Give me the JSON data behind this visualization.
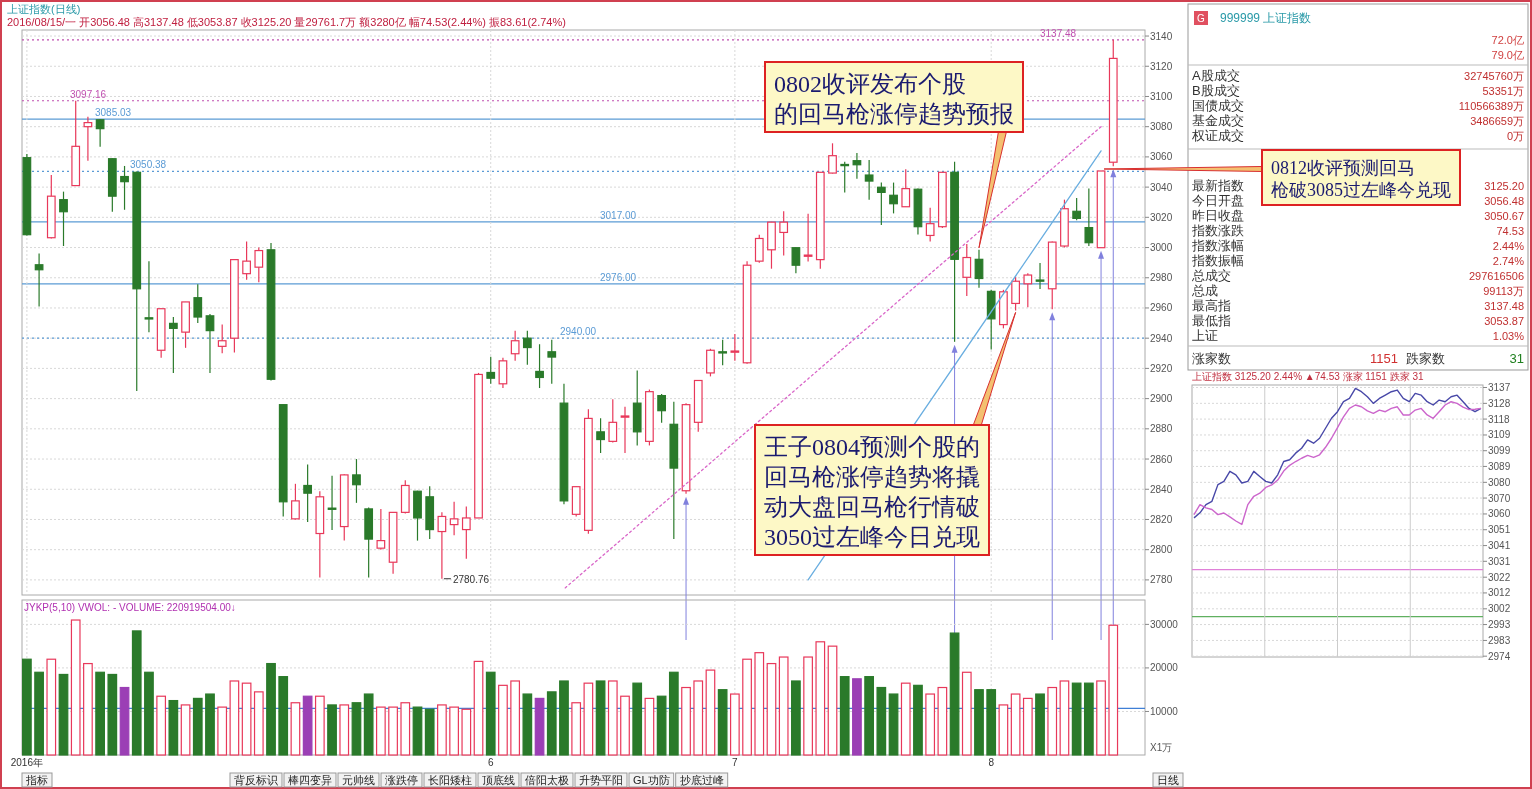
{
  "chart_data": [
    {
      "type": "candlestick",
      "title": "上证指数(日线)",
      "subtitle": "2016/08/15/一 开3056.48 高3137.48 低3053.87 收3125.20 量29761.7万 额3280亿 幅74.53(2.44%) 振83.61(2.74%)",
      "categories": [
        null,
        null,
        null,
        null,
        null,
        null,
        null,
        null,
        null,
        null,
        null,
        null,
        null,
        null,
        null,
        null,
        null,
        null,
        null,
        null,
        null,
        null,
        null,
        null,
        null,
        null,
        null,
        null,
        null,
        null,
        null,
        null,
        null,
        null,
        null,
        null,
        null,
        null,
        null,
        null,
        null,
        null,
        null,
        null,
        null,
        null,
        null,
        null,
        null,
        null,
        null,
        null,
        null,
        null,
        null,
        null,
        null,
        null,
        null,
        null,
        null,
        null,
        null,
        null,
        null,
        null,
        null,
        null,
        null,
        null,
        null,
        null,
        null,
        null,
        null,
        null,
        null,
        null,
        null,
        null,
        null,
        null,
        null,
        null,
        null,
        null,
        null,
        null,
        null,
        null
      ],
      "tick_labels": "y",
      "ylim": [
        2770,
        3144
      ],
      "yticks": [
        2780,
        2800,
        2820,
        2840,
        2860,
        2880,
        2900,
        2920,
        2940,
        2960,
        2980,
        3000,
        3020,
        3040,
        3060,
        3080,
        3100,
        3120,
        3140
      ],
      "grid": true,
      "ohlc": [
        [
          3059.5,
          3062,
          3008,
          3008.5
        ],
        [
          2988.6,
          2996,
          2961,
          2985.3
        ],
        [
          3006.5,
          3048,
          3006,
          3034
        ],
        [
          3031.7,
          3037,
          3001,
          3023.7
        ],
        [
          3041,
          3097.16,
          3041,
          3067
        ],
        [
          3080,
          3086.6,
          3057.5,
          3082.7
        ],
        [
          3084.6,
          3085.03,
          3066.8,
          3078.7
        ],
        [
          3058.8,
          3059,
          3023.7,
          3034
        ],
        [
          3047,
          3054,
          3025,
          3043.6
        ],
        [
          3049.8,
          3050.38,
          2905,
          2972.7
        ],
        [
          2953.5,
          2991,
          2944,
          2953
        ],
        [
          2932,
          2959.5,
          2927,
          2959.5
        ],
        [
          2949.8,
          2954,
          2917,
          2946.5
        ],
        [
          2944,
          2964,
          2933.6,
          2964
        ],
        [
          2966.8,
          2975.7,
          2950,
          2954
        ],
        [
          2954.8,
          2956,
          2917,
          2945
        ],
        [
          2934.6,
          2949,
          2930,
          2938.3
        ],
        [
          2940,
          2992,
          2930.5,
          2992
        ],
        [
          2982.7,
          3004,
          2978.7,
          2991
        ],
        [
          2987,
          3000,
          2977,
          2998
        ],
        [
          2998.5,
          3003,
          2912,
          2912.8
        ],
        [
          2896,
          2896,
          2822,
          2831.7
        ],
        [
          2820.4,
          2843.6,
          2820,
          2832.3
        ],
        [
          2842.5,
          2856.4,
          2818.4,
          2837.4
        ],
        [
          2810.7,
          2838.7,
          2781.6,
          2835
        ],
        [
          2827.5,
          2849,
          2813,
          2827
        ],
        [
          2815.3,
          2850,
          2806,
          2849.5
        ],
        [
          2849.5,
          2860,
          2831,
          2843
        ],
        [
          2827,
          2828,
          2781.6,
          2807
        ],
        [
          2801,
          2827,
          2800,
          2806
        ],
        [
          2791.7,
          2825,
          2784,
          2824.7
        ],
        [
          2824.7,
          2846,
          2824,
          2842.5
        ],
        [
          2838.7,
          2839,
          2806,
          2821
        ],
        [
          2835,
          2842,
          2807,
          2813.3
        ],
        [
          2812,
          2824.7,
          2780.76,
          2822
        ],
        [
          2816.6,
          2831.7,
          2809.5,
          2820.4
        ],
        [
          2813.3,
          2828.5,
          2794,
          2821
        ],
        [
          2821,
          2917,
          2821,
          2916
        ],
        [
          2917.3,
          2927.7,
          2909.8,
          2913.5
        ],
        [
          2909.8,
          2927,
          2907,
          2925
        ],
        [
          2929.7,
          2945,
          2925,
          2938.3
        ],
        [
          2940,
          2945,
          2922.4,
          2933.8
        ],
        [
          2918,
          2936,
          2907,
          2914
        ],
        [
          2931,
          2939,
          2909.8,
          2927.5
        ],
        [
          2897,
          2909.8,
          2830,
          2832.3
        ],
        [
          2823.4,
          2842,
          2822,
          2841.7
        ],
        [
          2812.8,
          2893,
          2810.6,
          2886.9
        ],
        [
          2878,
          2887,
          2864,
          2872.9
        ],
        [
          2871.7,
          2899.5,
          2871,
          2884.3
        ],
        [
          2888,
          2894.6,
          2864,
          2888.5
        ],
        [
          2897,
          2918.6,
          2869,
          2878
        ],
        [
          2871.7,
          2906,
          2869,
          2904.6
        ],
        [
          2902,
          2903,
          2884,
          2892
        ],
        [
          2883,
          2898,
          2807,
          2854
        ],
        [
          2839,
          2897,
          2837,
          2896
        ],
        [
          2884.3,
          2912,
          2878,
          2912
        ],
        [
          2917,
          2933,
          2914.7,
          2932
        ],
        [
          2931,
          2939,
          2922,
          2930.5
        ],
        [
          2931,
          2942.7,
          2925,
          2931.5
        ],
        [
          2923.7,
          2991,
          2923,
          2988.3
        ],
        [
          2991,
          3008.5,
          2990,
          3006
        ],
        [
          2998.5,
          3017,
          2986,
          3016.8
        ],
        [
          3010,
          3024,
          2994.7,
          3016.8
        ],
        [
          2999.9,
          3000,
          2983,
          2988.3
        ],
        [
          2994.5,
          3022.4,
          2990.8,
          2995
        ],
        [
          2992,
          3050,
          2986,
          3049.8
        ],
        [
          3049.3,
          3069,
          3049,
          3060.8
        ],
        [
          3055,
          3056.8,
          3036.5,
          3054.5
        ],
        [
          3057.5,
          3062.5,
          3045.6,
          3054.8
        ],
        [
          3048,
          3058,
          3031.7,
          3044
        ],
        [
          3039.9,
          3043,
          3015,
          3036.5
        ],
        [
          3034.6,
          3043,
          3022.6,
          3029
        ],
        [
          3027,
          3051.8,
          3027,
          3039
        ],
        [
          3038.6,
          3039,
          3008.7,
          3013.8
        ],
        [
          3008,
          3026.4,
          3004,
          3015.8
        ],
        [
          3013.8,
          3050,
          3013,
          3049.8
        ],
        [
          3049.8,
          3056.8,
          2937.6,
          2992.2
        ],
        [
          2980.3,
          3002.3,
          2968,
          2993.4
        ],
        [
          2992.2,
          2998.5,
          2973.4,
          2979.5
        ],
        [
          2971,
          2972,
          2932.5,
          2952.8
        ],
        [
          2949,
          2972,
          2946.5,
          2970.7
        ],
        [
          2963,
          2980.7,
          2958.4,
          2977.7
        ],
        [
          2976,
          2983,
          2960.5,
          2981.8
        ],
        [
          2978.5,
          2989.7,
          2972.6,
          2978
        ],
        [
          2972.7,
          3004,
          2959.2,
          3003.6
        ],
        [
          3001,
          3031.7,
          3000,
          3025.7
        ],
        [
          3024,
          3032.8,
          3018,
          3019.3
        ],
        [
          3013.2,
          3039,
          3001,
          3003.2
        ],
        [
          2999.9,
          3050.67,
          2999.9,
          3050.67
        ],
        [
          3056.48,
          3137.48,
          3053.87,
          3125.2
        ]
      ],
      "series": [
        {
          "type": "line",
          "values": [
            null,
            null,
            null,
            null,
            null,
            null,
            null,
            null,
            null,
            null,
            null,
            null,
            null,
            null,
            null,
            null,
            null,
            null,
            null,
            null,
            null,
            null,
            null,
            null,
            null,
            null,
            null,
            null,
            null,
            null,
            null,
            null,
            null,
            null,
            null,
            null,
            null,
            null,
            null,
            null,
            null,
            null,
            null,
            null,
            2774,
            null,
            null,
            null,
            null,
            null,
            null,
            null,
            null,
            null,
            null,
            null,
            null,
            null,
            null,
            null,
            null,
            null,
            null,
            null,
            null,
            null,
            null,
            null,
            null,
            null,
            null,
            null,
            null,
            null,
            null,
            null,
            null,
            null,
            null,
            null,
            null,
            null,
            null,
            null,
            null,
            null,
            null,
            null,
            3080,
            null
          ],
          "color": "#d966c8",
          "line_style": "dotted"
        },
        {
          "type": "line",
          "values": [
            null,
            null,
            null,
            null,
            null,
            null,
            null,
            null,
            null,
            null,
            null,
            null,
            null,
            null,
            null,
            null,
            null,
            null,
            null,
            null,
            null,
            null,
            null,
            null,
            null,
            null,
            null,
            null,
            null,
            null,
            null,
            null,
            null,
            null,
            null,
            null,
            null,
            null,
            null,
            null,
            null,
            null,
            null,
            null,
            null,
            null,
            null,
            null,
            null,
            null,
            null,
            null,
            null,
            null,
            null,
            null,
            null,
            null,
            null,
            null,
            null,
            null,
            null,
            null,
            2780,
            null,
            null,
            null,
            null,
            null,
            null,
            null,
            null,
            null,
            null,
            null,
            null,
            null,
            null,
            null,
            null,
            null,
            null,
            null,
            null,
            null,
            null,
            null,
            3064,
            null
          ],
          "color": "#6aaee0",
          "line_style": "solid"
        }
      ],
      "ref_lines": [
        {
          "axis": "y",
          "value": 3137.48,
          "label": "3137.48",
          "color": "#c050b0",
          "line_style": "dotted"
        },
        {
          "axis": "y",
          "value": 3097.16,
          "label": "3097.16",
          "color": "#c050b0",
          "line_style": "dotted"
        },
        {
          "axis": "y",
          "value": 3085.03,
          "label": "3085.03",
          "color": "#5b9bd5",
          "line_style": "solid"
        },
        {
          "axis": "y",
          "value": 3050.38,
          "label": "3050.38",
          "color": "#5b9bd5",
          "line_style": "dotted"
        },
        {
          "axis": "y",
          "value": 3017,
          "label": "3017.00",
          "color": "#5b9bd5",
          "line_style": "solid"
        },
        {
          "axis": "y",
          "value": 2976,
          "label": "2976.00",
          "color": "#5b9bd5",
          "line_style": "solid"
        },
        {
          "axis": "y",
          "value": 2940,
          "label": "2940.00",
          "color": "#5b9bd5",
          "line_style": "dotted"
        }
      ],
      "annotations": [
        "0802收评发布个股的回马枪涨停趋势预报",
        "王子0804预测个股的回马枪涨停趋势将撬动大盘回马枪行情破3050过左峰今日兑现",
        "0812收评预测回马枪破3085过左峰今兑现",
        "2780.76"
      ]
    },
    {
      "type": "bar",
      "title": "JYKP(5,10) VWOL: - VOLUME: 220919504.00↓",
      "ylabel": "X1万",
      "categories": [
        "2016年",
        null,
        null,
        null,
        null,
        null,
        null,
        null,
        null,
        null,
        null,
        null,
        null,
        null,
        null,
        null,
        null,
        null,
        null,
        null,
        null,
        null,
        null,
        null,
        null,
        null,
        null,
        null,
        null,
        null,
        null,
        null,
        null,
        null,
        null,
        null,
        null,
        null,
        "6",
        null,
        null,
        null,
        null,
        null,
        null,
        null,
        null,
        null,
        null,
        null,
        null,
        null,
        null,
        null,
        null,
        null,
        null,
        null,
        "7",
        null,
        null,
        null,
        null,
        null,
        null,
        null,
        null,
        null,
        null,
        null,
        null,
        null,
        null,
        null,
        null,
        null,
        null,
        null,
        null,
        "8",
        null,
        null,
        null,
        null,
        null,
        null,
        null,
        null,
        null,
        null
      ],
      "values": [
        22000,
        19000,
        22000,
        18500,
        31000,
        21000,
        19000,
        18500,
        15500,
        28500,
        19000,
        13500,
        12500,
        11500,
        13000,
        14000,
        11000,
        17000,
        16500,
        14500,
        21000,
        18000,
        12000,
        13500,
        13500,
        11500,
        11500,
        12000,
        14000,
        11000,
        11000,
        12000,
        11000,
        10500,
        11500,
        11000,
        10500,
        21500,
        19000,
        16000,
        17000,
        14000,
        13000,
        14500,
        17000,
        12000,
        16500,
        17000,
        17000,
        13500,
        16500,
        13000,
        13500,
        19000,
        15500,
        17000,
        19500,
        15000,
        14000,
        22000,
        23500,
        21000,
        22500,
        17000,
        22500,
        26000,
        25000,
        18000,
        17500,
        18000,
        15500,
        14000,
        16500,
        16000,
        14000,
        15500,
        28000,
        19000,
        15000,
        15000,
        11500,
        14000,
        13000,
        14000,
        15500,
        17000,
        16500,
        16500,
        17000,
        29800
      ],
      "colors": [
        "#2a7a2a",
        "#2a7a2a",
        "#e8385a",
        "#2a7a2a",
        "#e8385a",
        "#e8385a",
        "#2a7a2a",
        "#2a7a2a",
        "#9b3fb5",
        "#2a7a2a",
        "#2a7a2a",
        "#e8385a",
        "#2a7a2a",
        "#e8385a",
        "#2a7a2a",
        "#2a7a2a",
        "#e8385a",
        "#e8385a",
        "#e8385a",
        "#e8385a",
        "#2a7a2a",
        "#2a7a2a",
        "#e8385a",
        "#9b3fb5",
        "#e8385a",
        "#2a7a2a",
        "#e8385a",
        "#2a7a2a",
        "#2a7a2a",
        "#e8385a",
        "#e8385a",
        "#e8385a",
        "#2a7a2a",
        "#2a7a2a",
        "#e8385a",
        "#e8385a",
        "#e8385a",
        "#e8385a",
        "#2a7a2a",
        "#e8385a",
        "#e8385a",
        "#2a7a2a",
        "#9b3fb5",
        "#2a7a2a",
        "#2a7a2a",
        "#e8385a",
        "#e8385a",
        "#2a7a2a",
        "#e8385a",
        "#e8385a",
        "#2a7a2a",
        "#e8385a",
        "#2a7a2a",
        "#2a7a2a",
        "#e8385a",
        "#e8385a",
        "#e8385a",
        "#2a7a2a",
        "#e8385a",
        "#e8385a",
        "#e8385a",
        "#e8385a",
        "#e8385a",
        "#2a7a2a",
        "#e8385a",
        "#e8385a",
        "#e8385a",
        "#2a7a2a",
        "#9b3fb5",
        "#2a7a2a",
        "#2a7a2a",
        "#2a7a2a",
        "#e8385a",
        "#2a7a2a",
        "#e8385a",
        "#e8385a",
        "#2a7a2a",
        "#e8385a",
        "#2a7a2a",
        "#2a7a2a",
        "#e8385a",
        "#e8385a",
        "#e8385a",
        "#2a7a2a",
        "#e8385a",
        "#e8385a",
        "#2a7a2a",
        "#2a7a2a",
        "#e8385a",
        "#e8385a"
      ],
      "ylim": [
        0,
        35600
      ],
      "yticks": [
        10000,
        20000,
        30000
      ],
      "grid": true,
      "ref_lines": [
        {
          "axis": "y",
          "value": 10700,
          "color": "#3f7fd6",
          "line_style": "solid"
        }
      ],
      "annotations": [
        "指标",
        "背反标识",
        "棒四变异",
        "元帅线",
        "涨跌停",
        "长阳矮柱",
        "顶底线",
        "倍阳太极",
        "升势平阳",
        "GL功防",
        "抄底过峰",
        "日线"
      ]
    },
    {
      "type": "other",
      "title": "999999 上证指数",
      "annotations": [
        "G",
        "72.0亿",
        "79.0亿",
        "A股成交",
        "32745760万",
        "B股成交",
        "53351万",
        "国债成交",
        "110566389万",
        "基金成交",
        "3486659万",
        "权证成交",
        "0万",
        "最新指数",
        "3125.20",
        "今日开盘",
        "3056.48",
        "昨日收盘",
        "3050.67",
        "指数涨跌",
        "74.53",
        "指数涨幅",
        "2.44%",
        "指数振幅",
        "2.74%",
        "总成交",
        "297616506",
        "总成",
        "99113万",
        "最高指",
        "3137.48",
        "最低指",
        "3053.87",
        "上证",
        "1.03%",
        "涨家数",
        "1151",
        "跌家数",
        "31"
      ]
    },
    {
      "type": "line",
      "title": "上证指数 3125.20 2.44% ▲74.53 涨家 1151 跌家 31",
      "tick_labels": "y",
      "grid": true,
      "categories": [
        null,
        null,
        null,
        null,
        null,
        null,
        null,
        null,
        null,
        null,
        null,
        null,
        null,
        null,
        null,
        null,
        null,
        null,
        null,
        null,
        null,
        null,
        null,
        null,
        null,
        null,
        null,
        null,
        null,
        null,
        null,
        null,
        null,
        null,
        null,
        null,
        null,
        null,
        null,
        null,
        null,
        null,
        null,
        null,
        null,
        null,
        null,
        null,
        null
      ],
      "ylim": [
        2973,
        3139
      ],
      "yticks": [
        {
          "value": 2973.5,
          "label": "2974"
        },
        {
          "value": 2983.1,
          "label": "2983"
        },
        {
          "value": 2992.8,
          "label": "2993"
        },
        {
          "value": 3002.4,
          "label": "3002"
        },
        {
          "value": 3012.1,
          "label": "3012"
        },
        {
          "value": 3021.7,
          "label": "3022"
        },
        {
          "value": 3031.4,
          "label": "3031"
        },
        {
          "value": 3041,
          "label": "3041"
        },
        {
          "value": 3050.67,
          "label": "3051"
        },
        {
          "value": 3060.3,
          "label": "3060"
        },
        {
          "value": 3070,
          "label": "3070"
        },
        {
          "value": 3079.6,
          "label": "3080"
        },
        {
          "value": 3089.3,
          "label": "3089"
        },
        {
          "value": 3098.9,
          "label": "3099"
        },
        {
          "value": 3108.5,
          "label": "3109"
        },
        {
          "value": 3118.2,
          "label": "3118"
        },
        {
          "value": 3127.8,
          "label": "3128"
        },
        {
          "value": 3137.48,
          "label": "3137"
        }
      ],
      "ref_lines": [
        {
          "axis": "y",
          "value": 3026.3,
          "color": "#e080d8",
          "line_style": "solid"
        },
        {
          "axis": "y",
          "value": 2997.6,
          "color": "#60b060",
          "line_style": "solid"
        }
      ],
      "series": [
        {
          "color": "#4848a8",
          "values": [
            3057.9,
            3061.0,
            3066.0,
            3068.0,
            3078.2,
            3080.2,
            3086.3,
            3084.2,
            3079.2,
            3080.2,
            3086.3,
            3083.2,
            3080.2,
            3079.2,
            3084.2,
            3092.3,
            3093.4,
            3097.4,
            3100.4,
            3105.5,
            3103.5,
            3106.5,
            3112.6,
            3118.7,
            3122.7,
            3128.8,
            3130.8,
            3136.9,
            3134.9,
            3131.8,
            3127.8,
            3130.8,
            3132.8,
            3134.9,
            3135.9,
            3130.8,
            3128.8,
            3133.9,
            3132.8,
            3128.8,
            3126.8,
            3129.8,
            3128.8,
            3131.8,
            3132.8,
            3128.8,
            3124.7,
            3122.7,
            3124.7
          ]
        },
        {
          "color": "#cc66cc",
          "values": [
            3059.9,
            3066.0,
            3064.0,
            3063.0,
            3059.9,
            3060.9,
            3058.5,
            3056.0,
            3053.9,
            3066.0,
            3071.1,
            3073.0,
            3076.5,
            3078.0,
            3081.0,
            3086.5,
            3090.0,
            3092.3,
            3094.3,
            3096.0,
            3094.8,
            3096.4,
            3101.0,
            3106.5,
            3113.0,
            3119.5,
            3124.7,
            3126.8,
            3125.7,
            3123.2,
            3121.7,
            3123.7,
            3122.7,
            3124.7,
            3125.7,
            3120.7,
            3120.7,
            3123.7,
            3124.7,
            3120.7,
            3118.7,
            3122.7,
            3126.8,
            3128.8,
            3127.8,
            3125.5,
            3124.0,
            3124.2,
            3124.7
          ]
        }
      ]
    }
  ]
}
